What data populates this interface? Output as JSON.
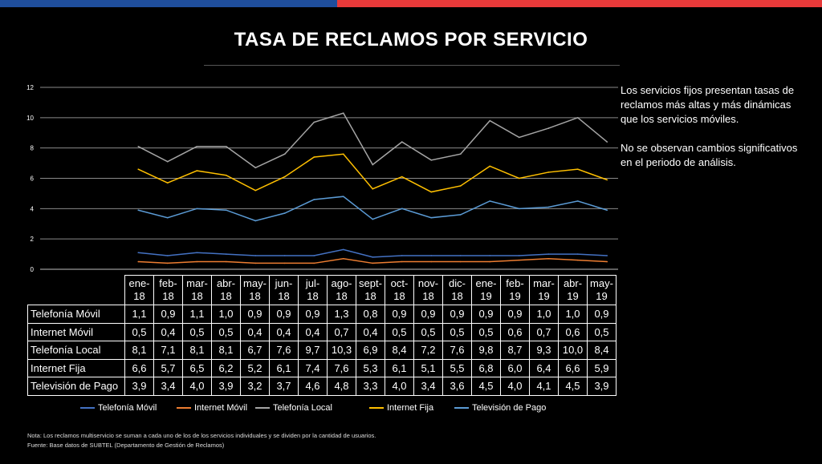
{
  "header": {
    "title": "TASA DE RECLAMOS POR SERVICIO"
  },
  "colors": {
    "bar_blue": "#1f4e9c",
    "bar_red": "#e83a3a"
  },
  "chart_data": {
    "type": "line",
    "categories": [
      [
        "ene-",
        "18"
      ],
      [
        "feb-",
        "18"
      ],
      [
        "mar-",
        "18"
      ],
      [
        "abr-",
        "18"
      ],
      [
        "may-",
        "18"
      ],
      [
        "jun-",
        "18"
      ],
      [
        "jul-",
        "18"
      ],
      [
        "ago-",
        "18"
      ],
      [
        "sept-",
        "18"
      ],
      [
        "oct-",
        "18"
      ],
      [
        "nov-",
        "18"
      ],
      [
        "dic-",
        "18"
      ],
      [
        "ene-",
        "19"
      ],
      [
        "feb-",
        "19"
      ],
      [
        "mar-",
        "19"
      ],
      [
        "abr-",
        "19"
      ],
      [
        "may-",
        "19"
      ]
    ],
    "ylim": [
      0,
      12
    ],
    "yticks": [
      "0",
      "2",
      "4",
      "6",
      "8",
      "10",
      "12"
    ],
    "grid": true,
    "legend": "bottom",
    "series": [
      {
        "name": "Telefonía Móvil",
        "color": "#4472c4",
        "values": [
          1.1,
          0.9,
          1.1,
          1.0,
          0.9,
          0.9,
          0.9,
          1.3,
          0.8,
          0.9,
          0.9,
          0.9,
          0.9,
          0.9,
          1.0,
          1.0,
          0.9
        ],
        "labels": [
          "1,1",
          "0,9",
          "1,1",
          "1,0",
          "0,9",
          "0,9",
          "0,9",
          "1,3",
          "0,8",
          "0,9",
          "0,9",
          "0,9",
          "0,9",
          "0,9",
          "1,0",
          "1,0",
          "0,9"
        ]
      },
      {
        "name": "Internet Móvil",
        "color": "#ed7d31",
        "values": [
          0.5,
          0.4,
          0.5,
          0.5,
          0.4,
          0.4,
          0.4,
          0.7,
          0.4,
          0.5,
          0.5,
          0.5,
          0.5,
          0.6,
          0.7,
          0.6,
          0.5
        ],
        "labels": [
          "0,5",
          "0,4",
          "0,5",
          "0,5",
          "0,4",
          "0,4",
          "0,4",
          "0,7",
          "0,4",
          "0,5",
          "0,5",
          "0,5",
          "0,5",
          "0,6",
          "0,7",
          "0,6",
          "0,5"
        ]
      },
      {
        "name": "Telefonía Local",
        "color": "#a5a5a5",
        "values": [
          8.1,
          7.1,
          8.1,
          8.1,
          6.7,
          7.6,
          9.7,
          10.3,
          6.9,
          8.4,
          7.2,
          7.6,
          9.8,
          8.7,
          9.3,
          10.0,
          8.4
        ],
        "labels": [
          "8,1",
          "7,1",
          "8,1",
          "8,1",
          "6,7",
          "7,6",
          "9,7",
          "10,3",
          "6,9",
          "8,4",
          "7,2",
          "7,6",
          "9,8",
          "8,7",
          "9,3",
          "10,0",
          "8,4"
        ]
      },
      {
        "name": "Internet Fija",
        "color": "#ffc000",
        "values": [
          6.6,
          5.7,
          6.5,
          6.2,
          5.2,
          6.1,
          7.4,
          7.6,
          5.3,
          6.1,
          5.1,
          5.5,
          6.8,
          6.0,
          6.4,
          6.6,
          5.9
        ],
        "labels": [
          "6,6",
          "5,7",
          "6,5",
          "6,2",
          "5,2",
          "6,1",
          "7,4",
          "7,6",
          "5,3",
          "6,1",
          "5,1",
          "5,5",
          "6,8",
          "6,0",
          "6,4",
          "6,6",
          "5,9"
        ]
      },
      {
        "name": "Televisión de Pago",
        "color": "#5b9bd5",
        "values": [
          3.9,
          3.4,
          4.0,
          3.9,
          3.2,
          3.7,
          4.6,
          4.8,
          3.3,
          4.0,
          3.4,
          3.6,
          4.5,
          4.0,
          4.1,
          4.5,
          3.9
        ],
        "labels": [
          "3,9",
          "3,4",
          "4,0",
          "3,9",
          "3,2",
          "3,7",
          "4,6",
          "4,8",
          "3,3",
          "4,0",
          "3,4",
          "3,6",
          "4,5",
          "4,0",
          "4,1",
          "4,5",
          "3,9"
        ]
      }
    ]
  },
  "side_text": {
    "p1": "Los servicios fijos presentan tasas de reclamos más altas y más dinámicas que los servicios móviles.",
    "p2": "No se observan cambios significativos en el periodo de análisis."
  },
  "notes": {
    "note": "Nota: Los reclamos multiservicio se suman a cada uno de los de los servicios individuales y se dividen por la cantidad de usuarios.",
    "source": "Fuente: Base datos de SUBTEL (Departamento de Gestión de Reclamos)"
  }
}
